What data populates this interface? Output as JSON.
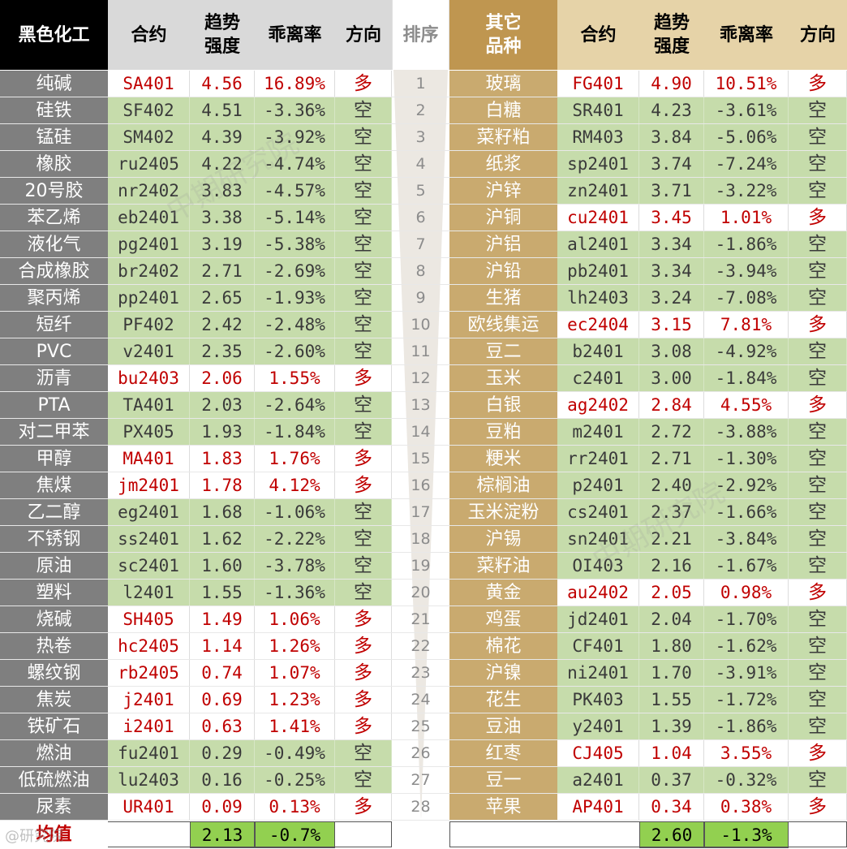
{
  "headers": {
    "left_title": "黑色化工",
    "right_title": "其它\n品种",
    "contract": "合约",
    "strength": "趋势\n强度",
    "deviation": "乖离率",
    "direction": "方向",
    "rank": "排序"
  },
  "left": [
    {
      "name": "纯碱",
      "contract": "SA401",
      "strength": "4.56",
      "deviation": "16.89%",
      "direction": "多"
    },
    {
      "name": "硅铁",
      "contract": "SF402",
      "strength": "4.51",
      "deviation": "-3.36%",
      "direction": "空"
    },
    {
      "name": "锰硅",
      "contract": "SM402",
      "strength": "4.39",
      "deviation": "-3.92%",
      "direction": "空"
    },
    {
      "name": "橡胶",
      "contract": "ru2405",
      "strength": "4.22",
      "deviation": "-4.74%",
      "direction": "空"
    },
    {
      "name": "20号胶",
      "contract": "nr2402",
      "strength": "3.83",
      "deviation": "-4.57%",
      "direction": "空"
    },
    {
      "name": "苯乙烯",
      "contract": "eb2401",
      "strength": "3.38",
      "deviation": "-5.14%",
      "direction": "空"
    },
    {
      "name": "液化气",
      "contract": "pg2401",
      "strength": "3.19",
      "deviation": "-5.38%",
      "direction": "空"
    },
    {
      "name": "合成橡胶",
      "contract": "br2402",
      "strength": "2.71",
      "deviation": "-2.69%",
      "direction": "空"
    },
    {
      "name": "聚丙烯",
      "contract": "pp2401",
      "strength": "2.65",
      "deviation": "-1.93%",
      "direction": "空"
    },
    {
      "name": "短纤",
      "contract": "PF402",
      "strength": "2.42",
      "deviation": "-2.48%",
      "direction": "空"
    },
    {
      "name": "PVC",
      "contract": "v2401",
      "strength": "2.35",
      "deviation": "-2.60%",
      "direction": "空"
    },
    {
      "name": "沥青",
      "contract": "bu2403",
      "strength": "2.06",
      "deviation": "1.55%",
      "direction": "多"
    },
    {
      "name": "PTA",
      "contract": "TA401",
      "strength": "2.03",
      "deviation": "-2.64%",
      "direction": "空"
    },
    {
      "name": "对二甲苯",
      "contract": "PX405",
      "strength": "1.93",
      "deviation": "-1.84%",
      "direction": "空"
    },
    {
      "name": "甲醇",
      "contract": "MA401",
      "strength": "1.83",
      "deviation": "1.76%",
      "direction": "多"
    },
    {
      "name": "焦煤",
      "contract": "jm2401",
      "strength": "1.78",
      "deviation": "4.12%",
      "direction": "多"
    },
    {
      "name": "乙二醇",
      "contract": "eg2401",
      "strength": "1.68",
      "deviation": "-1.06%",
      "direction": "空"
    },
    {
      "name": "不锈钢",
      "contract": "ss2401",
      "strength": "1.62",
      "deviation": "-2.22%",
      "direction": "空"
    },
    {
      "name": "原油",
      "contract": "sc2401",
      "strength": "1.60",
      "deviation": "-3.78%",
      "direction": "空"
    },
    {
      "name": "塑料",
      "contract": "l2401",
      "strength": "1.55",
      "deviation": "-1.36%",
      "direction": "空"
    },
    {
      "name": "烧碱",
      "contract": "SH405",
      "strength": "1.49",
      "deviation": "1.06%",
      "direction": "多"
    },
    {
      "name": "热卷",
      "contract": "hc2405",
      "strength": "1.14",
      "deviation": "1.26%",
      "direction": "多"
    },
    {
      "name": "螺纹钢",
      "contract": "rb2405",
      "strength": "0.74",
      "deviation": "1.07%",
      "direction": "多"
    },
    {
      "name": "焦炭",
      "contract": "j2401",
      "strength": "0.69",
      "deviation": "1.23%",
      "direction": "多"
    },
    {
      "name": "铁矿石",
      "contract": "i2401",
      "strength": "0.63",
      "deviation": "1.41%",
      "direction": "多"
    },
    {
      "name": "燃油",
      "contract": "fu2401",
      "strength": "0.29",
      "deviation": "-0.49%",
      "direction": "空"
    },
    {
      "name": "低硫燃油",
      "contract": "lu2403",
      "strength": "0.16",
      "deviation": "-0.25%",
      "direction": "空"
    },
    {
      "name": "尿素",
      "contract": "UR401",
      "strength": "0.09",
      "deviation": "0.13%",
      "direction": "多"
    }
  ],
  "right": [
    {
      "name": "玻璃",
      "contract": "FG401",
      "strength": "4.90",
      "deviation": "10.51%",
      "direction": "多"
    },
    {
      "name": "白糖",
      "contract": "SR401",
      "strength": "4.23",
      "deviation": "-3.61%",
      "direction": "空"
    },
    {
      "name": "菜籽粕",
      "contract": "RM403",
      "strength": "3.84",
      "deviation": "-5.06%",
      "direction": "空"
    },
    {
      "name": "纸浆",
      "contract": "sp2401",
      "strength": "3.74",
      "deviation": "-7.24%",
      "direction": "空"
    },
    {
      "name": "沪锌",
      "contract": "zn2401",
      "strength": "3.71",
      "deviation": "-3.22%",
      "direction": "空"
    },
    {
      "name": "沪铜",
      "contract": "cu2401",
      "strength": "3.45",
      "deviation": "1.01%",
      "direction": "多"
    },
    {
      "name": "沪铝",
      "contract": "al2401",
      "strength": "3.34",
      "deviation": "-1.86%",
      "direction": "空"
    },
    {
      "name": "沪铅",
      "contract": "pb2401",
      "strength": "3.34",
      "deviation": "-3.94%",
      "direction": "空"
    },
    {
      "name": "生猪",
      "contract": "lh2403",
      "strength": "3.24",
      "deviation": "-7.08%",
      "direction": "空"
    },
    {
      "name": "欧线集运",
      "contract": "ec2404",
      "strength": "3.15",
      "deviation": "7.81%",
      "direction": "多"
    },
    {
      "name": "豆二",
      "contract": "b2401",
      "strength": "3.08",
      "deviation": "-4.92%",
      "direction": "空"
    },
    {
      "name": "玉米",
      "contract": "c2401",
      "strength": "3.00",
      "deviation": "-1.84%",
      "direction": "空"
    },
    {
      "name": "白银",
      "contract": "ag2402",
      "strength": "2.84",
      "deviation": "4.55%",
      "direction": "多"
    },
    {
      "name": "豆粕",
      "contract": "m2401",
      "strength": "2.72",
      "deviation": "-3.88%",
      "direction": "空"
    },
    {
      "name": "粳米",
      "contract": "rr2401",
      "strength": "2.71",
      "deviation": "-1.30%",
      "direction": "空"
    },
    {
      "name": "棕榈油",
      "contract": "p2401",
      "strength": "2.40",
      "deviation": "-2.92%",
      "direction": "空"
    },
    {
      "name": "玉米淀粉",
      "contract": "cs2401",
      "strength": "2.37",
      "deviation": "-1.66%",
      "direction": "空"
    },
    {
      "name": "沪锡",
      "contract": "sn2401",
      "strength": "2.21",
      "deviation": "-3.84%",
      "direction": "空"
    },
    {
      "name": "菜籽油",
      "contract": "OI403",
      "strength": "2.16",
      "deviation": "-1.67%",
      "direction": "空"
    },
    {
      "name": "黄金",
      "contract": "au2402",
      "strength": "2.05",
      "deviation": "0.98%",
      "direction": "多"
    },
    {
      "name": "鸡蛋",
      "contract": "jd2401",
      "strength": "2.04",
      "deviation": "-1.70%",
      "direction": "空"
    },
    {
      "name": "棉花",
      "contract": "CF401",
      "strength": "1.80",
      "deviation": "-1.62%",
      "direction": "空"
    },
    {
      "name": "沪镍",
      "contract": "ni2401",
      "strength": "1.70",
      "deviation": "-3.91%",
      "direction": "空"
    },
    {
      "name": "花生",
      "contract": "PK403",
      "strength": "1.55",
      "deviation": "-1.72%",
      "direction": "空"
    },
    {
      "name": "豆油",
      "contract": "y2401",
      "strength": "1.39",
      "deviation": "-1.86%",
      "direction": "空"
    },
    {
      "name": "红枣",
      "contract": "CJ405",
      "strength": "1.04",
      "deviation": "3.55%",
      "direction": "多"
    },
    {
      "name": "豆一",
      "contract": "a2401",
      "strength": "0.37",
      "deviation": "-0.32%",
      "direction": "空"
    },
    {
      "name": "苹果",
      "contract": "AP401",
      "strength": "0.34",
      "deviation": "0.38%",
      "direction": "多"
    }
  ],
  "ranks": [
    "1",
    "2",
    "3",
    "4",
    "5",
    "6",
    "7",
    "8",
    "9",
    "10",
    "11",
    "12",
    "13",
    "14",
    "15",
    "16",
    "17",
    "18",
    "19",
    "20",
    "21",
    "22",
    "23",
    "24",
    "25",
    "26",
    "27",
    "28"
  ],
  "footer": {
    "label": "均值",
    "left_strength": "2.13",
    "left_deviation": "-0.7%",
    "right_strength": "2.60",
    "right_deviation": "-1.3%"
  },
  "watermarks": {
    "main": "中期研究院",
    "corner": "@研究院"
  },
  "colors": {
    "long_text": "#c00000",
    "short_bg": "#c6dcab",
    "left_name_bg": "#7f7f7f",
    "right_name_bg": "#c9aa6f",
    "right_header_bg": "#bf9650",
    "left_header_bg": "#000000",
    "footer_green": "#92d050"
  }
}
